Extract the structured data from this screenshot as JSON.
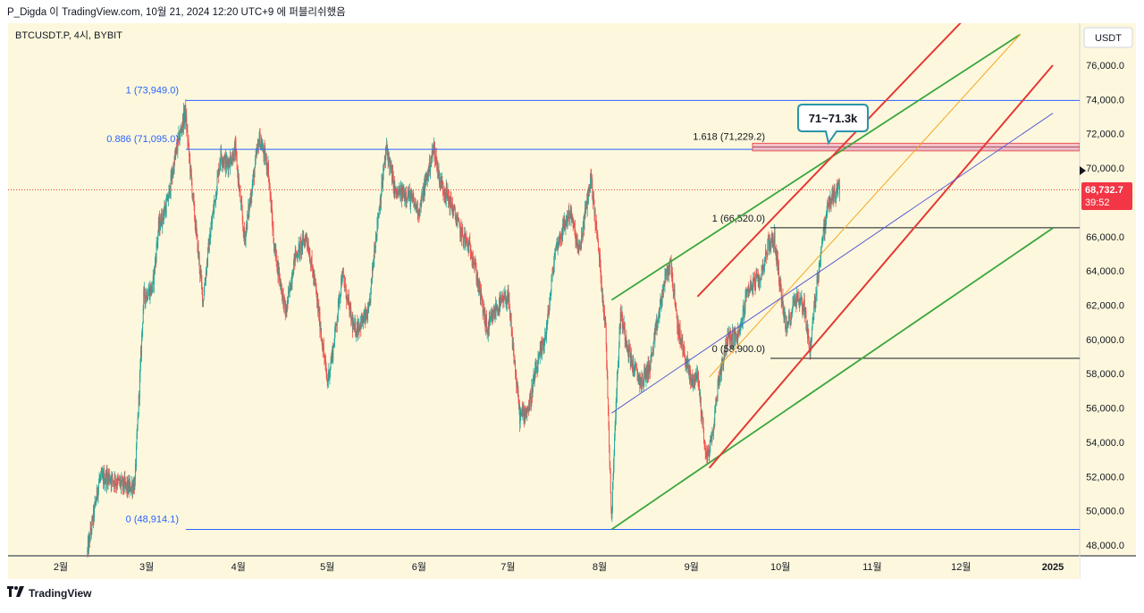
{
  "header": {
    "text": "P_Digda 이 TradingView.com, 10월 21, 2024 12:20 UTC+9 에 퍼블리쉬했음"
  },
  "footer": {
    "logo_icon": "tradingview-logo-icon",
    "brand": "TradingView"
  },
  "symbol": {
    "label": "BTCUSDT.P, 4시, BYBIT"
  },
  "currency_button": "USDT",
  "last_price": {
    "value": "68,732.7",
    "countdown": "39:52",
    "color": "#f23645"
  },
  "callout": {
    "text": "71~71.3k",
    "color": "#2b94a8"
  },
  "colors": {
    "background": "#fdf8dd",
    "up_candle": "#26a69a",
    "down_candle": "#ef5350",
    "fib_blue": "#2962ff",
    "fib_black": "#131722",
    "green_channel": "#3aa63e",
    "red_channel": "#e53935",
    "orange_line": "#f5a623",
    "purple_line": "#5b5bd6",
    "zone_fill": "#f2b8c6"
  },
  "chart_data": {
    "type": "candlestick",
    "symbol": "BTCUSDT.P",
    "timeframe": "4시",
    "exchange": "BYBIT",
    "ylim": [
      47500,
      77500
    ],
    "y_ticks": [
      "48,000.0",
      "50,000.0",
      "52,000.0",
      "54,000.0",
      "56,000.0",
      "58,000.0",
      "60,000.0",
      "62,000.0",
      "64,000.0",
      "66,000.0",
      "68,000.0",
      "70,000.0",
      "72,000.0",
      "74,000.0",
      "76,000.0"
    ],
    "x_labels": [
      {
        "label": "2월",
        "date": "2024-02-01"
      },
      {
        "label": "3월",
        "date": "2024-03-01"
      },
      {
        "label": "4월",
        "date": "2024-04-01"
      },
      {
        "label": "5월",
        "date": "2024-05-01"
      },
      {
        "label": "6월",
        "date": "2024-06-01"
      },
      {
        "label": "7월",
        "date": "2024-07-01"
      },
      {
        "label": "8월",
        "date": "2024-08-01"
      },
      {
        "label": "9월",
        "date": "2024-09-01"
      },
      {
        "label": "10월",
        "date": "2024-10-01"
      },
      {
        "label": "11월",
        "date": "2024-11-01"
      },
      {
        "label": "12월",
        "date": "2024-12-01"
      },
      {
        "label": "2025",
        "date": "2025-01-01"
      }
    ],
    "price_path": [
      [
        "2024-02-10",
        47600
      ],
      [
        "2024-02-14",
        51800
      ],
      [
        "2024-02-17",
        52000
      ],
      [
        "2024-02-21",
        51600
      ],
      [
        "2024-02-24",
        51300
      ],
      [
        "2024-02-26",
        51600
      ],
      [
        "2024-02-29",
        62500
      ],
      [
        "2024-03-03",
        63000
      ],
      [
        "2024-03-05",
        66500
      ],
      [
        "2024-03-08",
        68000
      ],
      [
        "2024-03-11",
        71000
      ],
      [
        "2024-03-14",
        73300
      ],
      [
        "2024-03-17",
        67500
      ],
      [
        "2024-03-20",
        62300
      ],
      [
        "2024-03-22",
        65500
      ],
      [
        "2024-03-26",
        70800
      ],
      [
        "2024-03-28",
        70200
      ],
      [
        "2024-03-31",
        71000
      ],
      [
        "2024-04-03",
        65800
      ],
      [
        "2024-04-08",
        71800
      ],
      [
        "2024-04-11",
        70000
      ],
      [
        "2024-04-13",
        65500
      ],
      [
        "2024-04-17",
        61500
      ],
      [
        "2024-04-20",
        64800
      ],
      [
        "2024-04-24",
        66000
      ],
      [
        "2024-04-27",
        63000
      ],
      [
        "2024-05-01",
        57500
      ],
      [
        "2024-05-03",
        59500
      ],
      [
        "2024-05-06",
        63800
      ],
      [
        "2024-05-10",
        60500
      ],
      [
        "2024-05-15",
        61500
      ],
      [
        "2024-05-17",
        65500
      ],
      [
        "2024-05-21",
        71200
      ],
      [
        "2024-05-24",
        68500
      ],
      [
        "2024-05-28",
        68500
      ],
      [
        "2024-06-01",
        67500
      ],
      [
        "2024-06-03",
        69000
      ],
      [
        "2024-06-06",
        71200
      ],
      [
        "2024-06-08",
        69300
      ],
      [
        "2024-06-12",
        67800
      ],
      [
        "2024-06-15",
        66300
      ],
      [
        "2024-06-19",
        65000
      ],
      [
        "2024-06-24",
        60500
      ],
      [
        "2024-06-27",
        61800
      ],
      [
        "2024-07-01",
        62500
      ],
      [
        "2024-07-05",
        55500
      ],
      [
        "2024-07-08",
        56000
      ],
      [
        "2024-07-10",
        57800
      ],
      [
        "2024-07-14",
        60500
      ],
      [
        "2024-07-17",
        65300
      ],
      [
        "2024-07-22",
        67500
      ],
      [
        "2024-07-25",
        65000
      ],
      [
        "2024-07-29",
        69500
      ],
      [
        "2024-08-01",
        64500
      ],
      [
        "2024-08-03",
        60500
      ],
      [
        "2024-08-05",
        49500
      ],
      [
        "2024-08-06",
        54500
      ],
      [
        "2024-08-08",
        61500
      ],
      [
        "2024-08-12",
        58500
      ],
      [
        "2024-08-15",
        57500
      ],
      [
        "2024-08-18",
        58500
      ],
      [
        "2024-08-23",
        63500
      ],
      [
        "2024-08-25",
        64500
      ],
      [
        "2024-08-27",
        61000
      ],
      [
        "2024-08-29",
        59500
      ],
      [
        "2024-09-01",
        57500
      ],
      [
        "2024-09-03",
        58000
      ],
      [
        "2024-09-06",
        53000
      ],
      [
        "2024-09-08",
        54300
      ],
      [
        "2024-09-10",
        57500
      ],
      [
        "2024-09-13",
        60000
      ],
      [
        "2024-09-17",
        60200
      ],
      [
        "2024-09-20",
        63000
      ],
      [
        "2024-09-24",
        63500
      ],
      [
        "2024-09-27",
        65600
      ],
      [
        "2024-09-29",
        65800
      ],
      [
        "2024-10-01",
        63000
      ],
      [
        "2024-10-03",
        60500
      ],
      [
        "2024-10-06",
        62500
      ],
      [
        "2024-10-09",
        62000
      ],
      [
        "2024-10-11",
        59300
      ],
      [
        "2024-10-13",
        62800
      ],
      [
        "2024-10-15",
        65600
      ],
      [
        "2024-10-17",
        67800
      ],
      [
        "2024-10-20",
        68700
      ],
      [
        "2024-10-21",
        68733
      ]
    ],
    "fib_retracement_1": {
      "levels": [
        {
          "label": "1 (73,949.0)",
          "price": 73949.0
        },
        {
          "label": "0.886 (71,095.0)",
          "price": 71095.0
        },
        {
          "label": "0 (48,914.1)",
          "price": 48914.1
        }
      ]
    },
    "fib_extension": {
      "level_label": "1.618 (71,229.2)",
      "price": 71229.2,
      "zone": [
        71000,
        71450
      ]
    },
    "fib_retracement_2": {
      "levels": [
        {
          "label": "1 (66,520.0)",
          "price": 66520.0
        },
        {
          "label": "0 (58,900.0)",
          "price": 58900.0
        }
      ]
    },
    "trend_lines": [
      {
        "name": "green-channel-top",
        "from": [
          "2024-08-05",
          62300
        ],
        "to": [
          "2024-12-21",
          77800
        ]
      },
      {
        "name": "green-channel-bottom",
        "from": [
          "2024-08-05",
          48914
        ],
        "to": [
          "2025-01-01",
          66500
        ]
      },
      {
        "name": "red-channel-top",
        "from": [
          "2024-09-03",
          62500
        ],
        "to": [
          "2024-12-01",
          78500
        ]
      },
      {
        "name": "red-channel-bottom",
        "from": [
          "2024-09-07",
          52500
        ],
        "to": [
          "2025-01-01",
          76000
        ]
      },
      {
        "name": "orange-line",
        "from": [
          "2024-09-07",
          57800
        ],
        "to": [
          "2024-12-21",
          77800
        ]
      },
      {
        "name": "purple-line",
        "from": [
          "2024-08-05",
          55700
        ],
        "to": [
          "2025-01-01",
          73200
        ]
      }
    ],
    "last_price_line": 68732.7
  }
}
